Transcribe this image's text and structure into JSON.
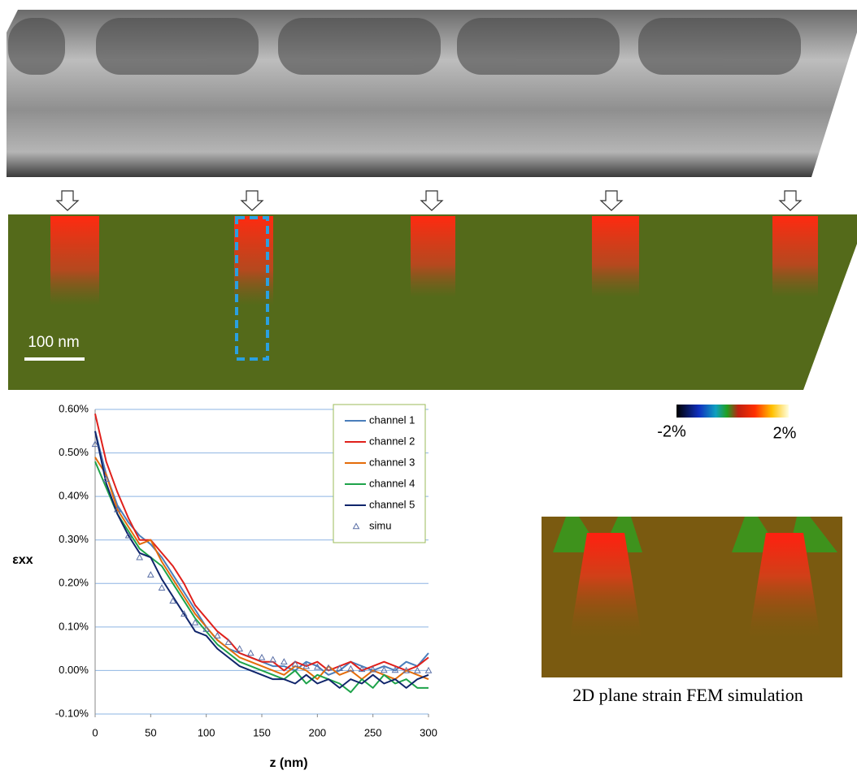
{
  "chart_data": {
    "type": "line",
    "x_label": "z (nm)",
    "y_label": "εxx",
    "x": [
      0,
      10,
      20,
      30,
      40,
      50,
      60,
      70,
      80,
      90,
      100,
      110,
      120,
      130,
      140,
      150,
      160,
      170,
      180,
      190,
      200,
      210,
      220,
      230,
      240,
      250,
      260,
      270,
      280,
      290,
      300
    ],
    "series": [
      {
        "name": "channel 1",
        "color": "#4a7ebb",
        "values": [
          0.55,
          0.45,
          0.38,
          0.34,
          0.31,
          0.29,
          0.26,
          0.22,
          0.18,
          0.14,
          0.1,
          0.07,
          0.05,
          0.04,
          0.03,
          0.02,
          0.01,
          0.01,
          0.0,
          0.02,
          0.01,
          -0.01,
          0.0,
          0.02,
          0.01,
          0.0,
          0.01,
          0.0,
          0.02,
          0.01,
          0.04
        ]
      },
      {
        "name": "channel 2",
        "color": "#e0201b",
        "values": [
          0.59,
          0.48,
          0.41,
          0.35,
          0.3,
          0.3,
          0.27,
          0.24,
          0.2,
          0.15,
          0.12,
          0.09,
          0.07,
          0.04,
          0.03,
          0.02,
          0.02,
          0.0,
          0.02,
          0.01,
          0.02,
          0.0,
          0.01,
          0.02,
          0.0,
          0.01,
          0.02,
          0.01,
          0.0,
          0.01,
          0.03
        ]
      },
      {
        "name": "channel 3",
        "color": "#e46c0a",
        "values": [
          0.49,
          0.45,
          0.37,
          0.33,
          0.29,
          0.3,
          0.25,
          0.21,
          0.17,
          0.13,
          0.1,
          0.07,
          0.05,
          0.03,
          0.02,
          0.01,
          0.0,
          -0.01,
          0.01,
          0.0,
          -0.02,
          0.01,
          -0.01,
          0.0,
          -0.02,
          0.0,
          -0.01,
          -0.02,
          0.0,
          -0.01,
          -0.02
        ]
      },
      {
        "name": "channel 4",
        "color": "#1ea34a",
        "values": [
          0.48,
          0.42,
          0.36,
          0.32,
          0.28,
          0.26,
          0.24,
          0.2,
          0.16,
          0.12,
          0.09,
          0.06,
          0.04,
          0.02,
          0.01,
          0.0,
          -0.01,
          -0.02,
          0.0,
          -0.03,
          -0.01,
          -0.02,
          -0.03,
          -0.05,
          -0.02,
          -0.04,
          -0.01,
          -0.03,
          -0.02,
          -0.04,
          -0.04
        ]
      },
      {
        "name": "channel 5",
        "color": "#10256b",
        "values": [
          0.55,
          0.43,
          0.36,
          0.31,
          0.27,
          0.26,
          0.21,
          0.17,
          0.13,
          0.09,
          0.08,
          0.05,
          0.03,
          0.01,
          0.0,
          -0.01,
          -0.02,
          -0.02,
          -0.03,
          -0.01,
          -0.03,
          -0.02,
          -0.04,
          -0.02,
          -0.03,
          -0.01,
          -0.03,
          -0.02,
          -0.04,
          -0.02,
          -0.01
        ]
      },
      {
        "name": "simu",
        "color": "#5a6fa6",
        "marker": "triangle",
        "values": [
          0.52,
          0.44,
          0.37,
          0.31,
          0.26,
          0.22,
          0.19,
          0.16,
          0.13,
          0.11,
          0.095,
          0.08,
          0.065,
          0.05,
          0.04,
          0.03,
          0.025,
          0.02,
          0.015,
          0.01,
          0.008,
          0.006,
          0.005,
          0.004,
          0.003,
          0.002,
          0.001,
          0.001,
          0,
          0,
          0
        ]
      }
    ],
    "xlim": [
      0,
      300
    ],
    "xticks": [
      0,
      50,
      100,
      150,
      200,
      250,
      300
    ],
    "ylim": [
      -0.1,
      0.6
    ],
    "yticks": [
      {
        "value": -0.1,
        "label": "-0.10%"
      },
      {
        "value": 0,
        "label": "0.00%"
      },
      {
        "value": 0.1,
        "label": "0.10%"
      },
      {
        "value": 0.2,
        "label": "0.20%"
      },
      {
        "value": 0.3,
        "label": "0.30%"
      },
      {
        "value": 0.4,
        "label": "0.40%"
      },
      {
        "value": 0.5,
        "label": "0.50%"
      },
      {
        "value": 0.6,
        "label": "0.60%"
      }
    ],
    "grid": true,
    "legend": "upper right"
  },
  "scale_bar": "100 nm",
  "colorbar": {
    "min_label": "-2%",
    "max_label": "2%"
  },
  "fem_caption": "2D plane strain FEM simulation"
}
